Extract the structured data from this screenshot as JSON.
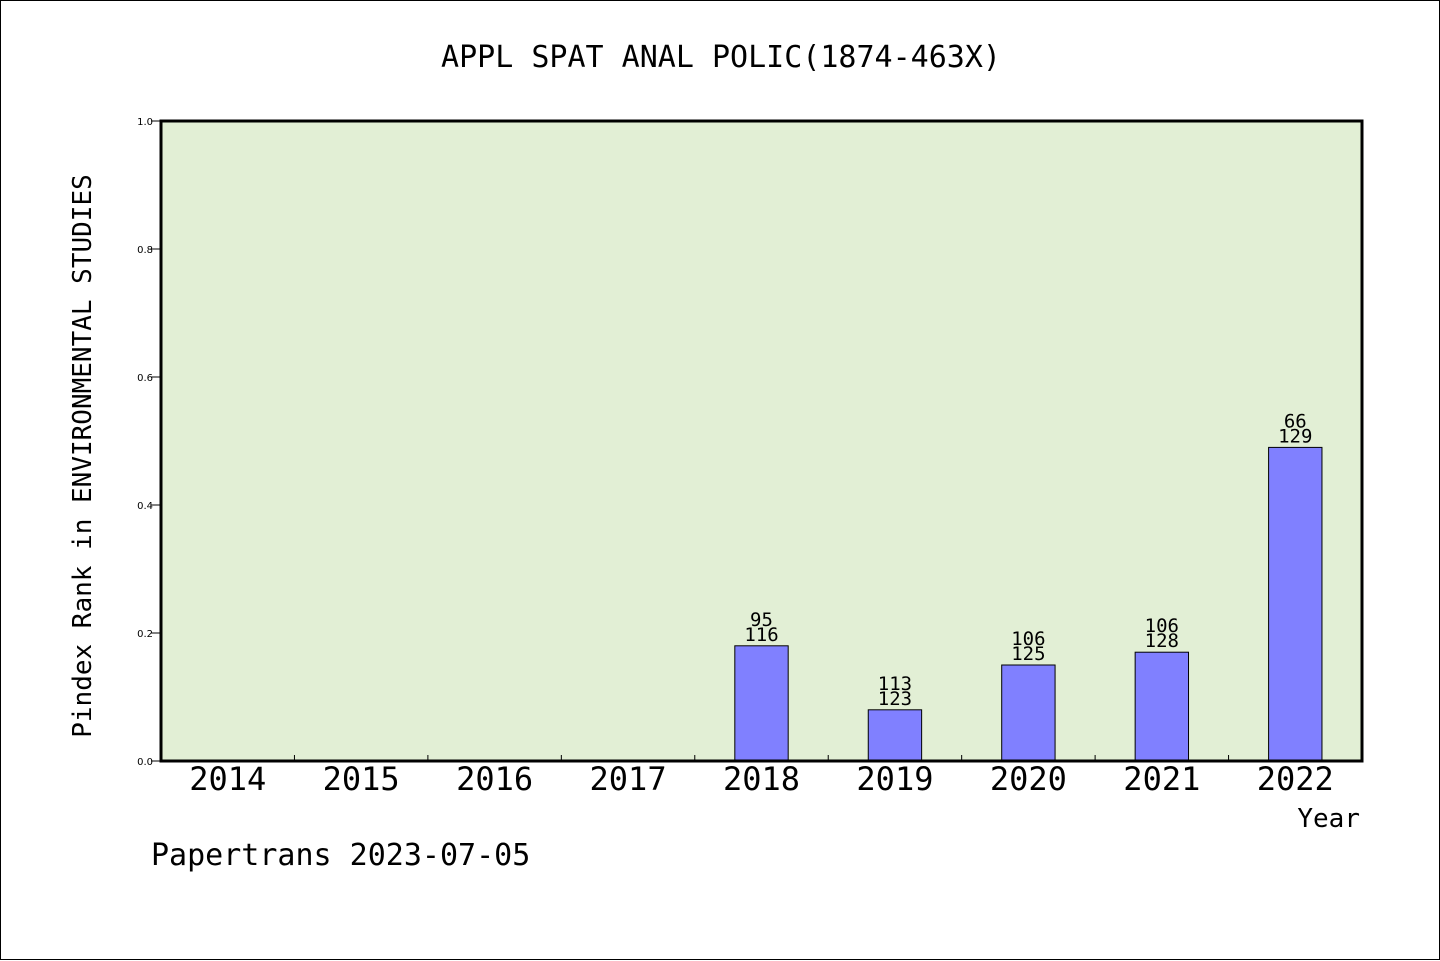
{
  "chart_data": {
    "type": "bar",
    "title": "APPL SPAT ANAL POLIC(1874-463X)",
    "xlabel": "Year",
    "ylabel": "Pindex Rank in ENVIRONMENTAL STUDIES",
    "ylim": [
      0,
      1.0
    ],
    "yticks": [
      "0.0",
      "0.2",
      "0.4",
      "0.6",
      "0.8",
      "1.0"
    ],
    "categories": [
      "2014",
      "2015",
      "2016",
      "2017",
      "2018",
      "2019",
      "2020",
      "2021",
      "2022"
    ],
    "values": [
      null,
      null,
      null,
      null,
      0.18,
      0.08,
      0.15,
      0.17,
      0.49
    ],
    "rank_labels": [
      "",
      "",
      "",
      "",
      "95",
      "113",
      "106",
      "106",
      "66"
    ],
    "total_labels": [
      "",
      "",
      "",
      "",
      "116",
      "123",
      "125",
      "128",
      "129"
    ],
    "grid": false,
    "colors": {
      "plot_background": "#e2efd5",
      "bar_fill": "#8080ff",
      "bar_stroke": "#000000"
    }
  },
  "footer": "Papertrans 2023-07-05"
}
